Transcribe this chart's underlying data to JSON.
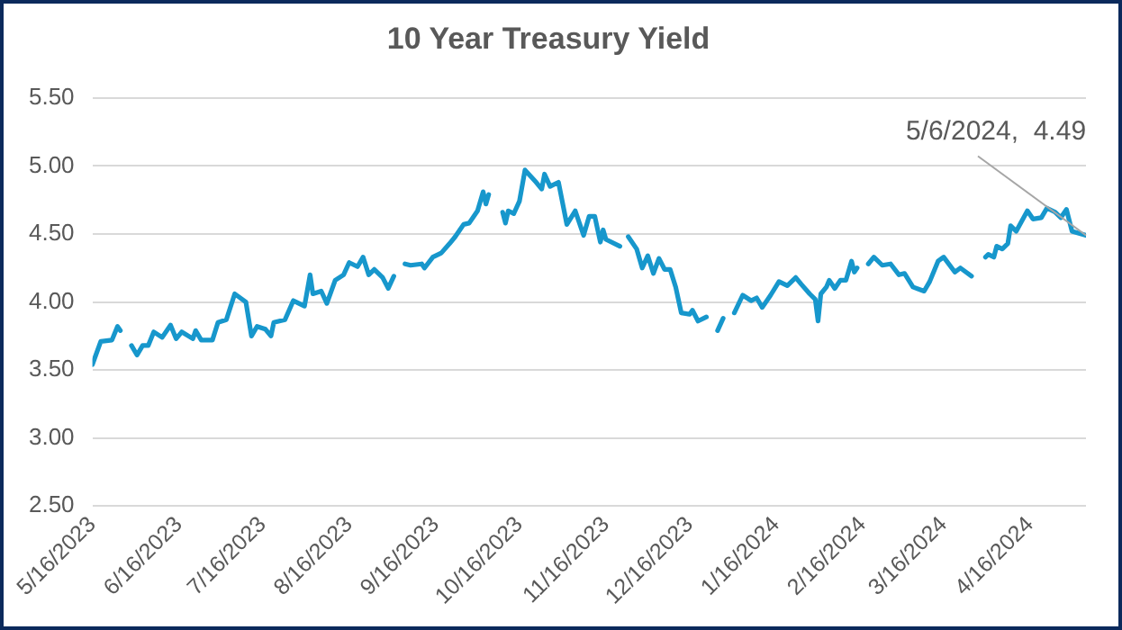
{
  "chart_data": {
    "type": "line",
    "title": "10 Year Treasury Yield",
    "x": [
      "2023-05-16",
      "2023-05-19",
      "2023-05-23",
      "2023-05-25",
      "2023-05-26",
      "2023-05-29",
      "2023-05-30",
      "2023-06-01",
      "2023-06-03",
      "2023-06-05",
      "2023-06-07",
      "2023-06-10",
      "2023-06-13",
      "2023-06-15",
      "2023-06-17",
      "2023-06-21",
      "2023-06-22",
      "2023-06-24",
      "2023-06-28",
      "2023-06-30",
      "2023-07-03",
      "2023-07-06",
      "2023-07-10",
      "2023-07-12",
      "2023-07-14",
      "2023-07-17",
      "2023-07-19",
      "2023-07-20",
      "2023-07-24",
      "2023-07-27",
      "2023-07-31",
      "2023-08-02",
      "2023-08-03",
      "2023-08-06",
      "2023-08-08",
      "2023-08-11",
      "2023-08-14",
      "2023-08-16",
      "2023-08-19",
      "2023-08-21",
      "2023-08-23",
      "2023-08-25",
      "2023-08-28",
      "2023-08-30",
      "2023-09-01",
      "2023-09-04",
      "2023-09-05",
      "2023-09-07",
      "2023-09-11",
      "2023-09-12",
      "2023-09-15",
      "2023-09-18",
      "2023-09-21",
      "2023-09-23",
      "2023-09-26",
      "2023-09-28",
      "2023-10-01",
      "2023-10-03",
      "2023-10-04",
      "2023-10-05",
      "2023-10-08",
      "2023-10-10",
      "2023-10-11",
      "2023-10-12",
      "2023-10-14",
      "2023-10-16",
      "2023-10-18",
      "2023-10-22",
      "2023-10-24",
      "2023-10-25",
      "2023-10-27",
      "2023-10-30",
      "2023-11-02",
      "2023-11-05",
      "2023-11-08",
      "2023-11-10",
      "2023-11-12",
      "2023-11-14",
      "2023-11-15",
      "2023-11-16",
      "2023-11-21",
      "2023-11-23",
      "2023-11-24",
      "2023-11-27",
      "2023-11-29",
      "2023-12-01",
      "2023-12-03",
      "2023-12-05",
      "2023-12-07",
      "2023-12-09",
      "2023-12-11",
      "2023-12-13",
      "2023-12-16",
      "2023-12-17",
      "2023-12-19",
      "2023-12-22",
      "2023-12-25",
      "2023-12-26",
      "2023-12-28",
      "2023-12-31",
      "2024-01-01",
      "2024-01-04",
      "2024-01-07",
      "2024-01-09",
      "2024-01-11",
      "2024-01-14",
      "2024-01-17",
      "2024-01-20",
      "2024-01-23",
      "2024-01-25",
      "2024-01-28",
      "2024-01-30",
      "2024-01-31",
      "2024-02-01",
      "2024-02-03",
      "2024-02-04",
      "2024-02-06",
      "2024-02-08",
      "2024-02-10",
      "2024-02-12",
      "2024-02-13",
      "2024-02-14",
      "2024-02-16",
      "2024-02-18",
      "2024-02-20",
      "2024-02-23",
      "2024-02-26",
      "2024-02-29",
      "2024-03-02",
      "2024-03-05",
      "2024-03-09",
      "2024-03-11",
      "2024-03-14",
      "2024-03-16",
      "2024-03-20",
      "2024-03-22",
      "2024-03-26",
      "2024-03-29",
      "2024-03-31",
      "2024-04-01",
      "2024-04-03",
      "2024-04-04",
      "2024-04-06",
      "2024-04-08",
      "2024-04-09",
      "2024-04-11",
      "2024-04-15",
      "2024-04-17",
      "2024-04-20",
      "2024-04-22",
      "2024-04-25",
      "2024-04-27",
      "2024-04-29",
      "2024-05-01",
      "2024-05-06"
    ],
    "series": [
      {
        "color": "#1797cc",
        "values": [
          3.54,
          3.71,
          3.72,
          3.82,
          3.79,
          null,
          3.68,
          3.61,
          3.68,
          3.68,
          3.78,
          3.74,
          3.83,
          3.73,
          3.78,
          3.73,
          3.79,
          3.72,
          3.72,
          3.85,
          3.87,
          4.06,
          4.0,
          3.75,
          3.82,
          3.8,
          3.75,
          3.85,
          3.87,
          4.01,
          3.97,
          4.2,
          4.06,
          4.08,
          3.99,
          4.16,
          4.2,
          4.29,
          4.26,
          4.33,
          4.2,
          4.24,
          4.18,
          4.1,
          4.19,
          null,
          4.28,
          4.27,
          4.28,
          4.25,
          4.33,
          4.36,
          4.43,
          4.48,
          4.57,
          4.58,
          4.67,
          4.81,
          4.72,
          4.79,
          null,
          4.66,
          4.58,
          4.67,
          4.65,
          4.74,
          4.97,
          4.88,
          4.83,
          4.94,
          4.85,
          4.88,
          4.57,
          4.67,
          4.49,
          4.63,
          4.63,
          4.44,
          4.53,
          4.46,
          4.41,
          null,
          4.48,
          4.39,
          4.25,
          4.34,
          4.21,
          4.32,
          4.24,
          4.24,
          4.11,
          3.92,
          3.91,
          3.94,
          3.86,
          3.89,
          null,
          3.79,
          3.88,
          null,
          3.92,
          4.05,
          4.01,
          4.03,
          3.96,
          4.05,
          4.15,
          4.12,
          4.18,
          4.13,
          4.06,
          4.02,
          3.86,
          4.06,
          4.11,
          4.16,
          4.1,
          4.16,
          4.16,
          4.3,
          4.22,
          4.25,
          null,
          4.28,
          4.33,
          4.27,
          4.28,
          4.2,
          4.21,
          4.11,
          4.08,
          4.15,
          4.3,
          4.33,
          4.22,
          4.25,
          4.19,
          null,
          4.33,
          4.35,
          4.33,
          4.41,
          4.39,
          4.43,
          4.56,
          4.52,
          4.67,
          4.61,
          4.62,
          4.69,
          4.66,
          4.62,
          4.68,
          4.52,
          4.49
        ]
      }
    ],
    "xlim": [
      "2023-05-16",
      "2024-05-06"
    ],
    "xticks": [
      {
        "value": "2023-05-16",
        "label": "5/16/2023"
      },
      {
        "value": "2023-06-16",
        "label": "6/16/2023"
      },
      {
        "value": "2023-07-16",
        "label": "7/16/2023"
      },
      {
        "value": "2023-08-16",
        "label": "8/16/2023"
      },
      {
        "value": "2023-09-16",
        "label": "9/16/2023"
      },
      {
        "value": "2023-10-16",
        "label": "10/16/2023"
      },
      {
        "value": "2023-11-16",
        "label": "11/16/2023"
      },
      {
        "value": "2023-12-16",
        "label": "12/16/2023"
      },
      {
        "value": "2024-01-16",
        "label": "1/16/2024"
      },
      {
        "value": "2024-02-16",
        "label": "2/16/2024"
      },
      {
        "value": "2024-03-16",
        "label": "3/16/2024"
      },
      {
        "value": "2024-04-16",
        "label": "4/16/2024"
      }
    ],
    "ylim": [
      2.5,
      5.5
    ],
    "yticks": [
      {
        "value": 2.5,
        "label": "2.50"
      },
      {
        "value": 3,
        "label": "3.00"
      },
      {
        "value": 3.5,
        "label": "3.50"
      },
      {
        "value": 4,
        "label": "4.00"
      },
      {
        "value": 4.5,
        "label": "4.50"
      },
      {
        "value": 5,
        "label": "5.00"
      },
      {
        "value": 5.5,
        "label": "5.50"
      }
    ],
    "grid": "y",
    "legend": false,
    "marker": "none",
    "line_style": "solid",
    "annotations": [
      {
        "text": "5/6/2024,  4.49",
        "x": "2024-05-06",
        "y": 4.49
      }
    ]
  }
}
